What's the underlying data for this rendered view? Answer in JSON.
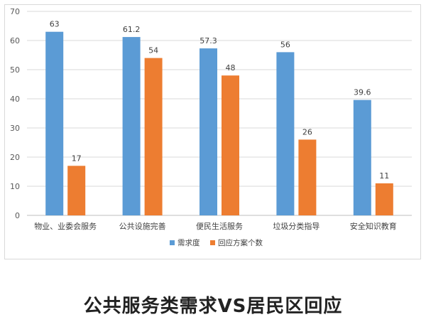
{
  "caption": "公共服务类需求VS居民区回应",
  "chart_data": {
    "type": "bar",
    "title": "",
    "xlabel": "",
    "ylabel": "",
    "ylim": [
      0,
      70
    ],
    "yticks": [
      0,
      10,
      20,
      30,
      40,
      50,
      60,
      70
    ],
    "grid": true,
    "legend_position": "bottom",
    "categories": [
      "物业、业委会服务",
      "公共设施完善",
      "便民生活服务",
      "垃圾分类指导",
      "安全知识教育"
    ],
    "series": [
      {
        "name": "需求度",
        "color": "#5b9bd5",
        "values": [
          63,
          61.2,
          57.3,
          56,
          39.6
        ],
        "labels": [
          "63",
          "61.2",
          "57.3",
          "56",
          "39.6"
        ]
      },
      {
        "name": "回应方案个数",
        "color": "#ed7d31",
        "values": [
          17,
          54,
          48,
          26,
          11
        ],
        "labels": [
          "17",
          "54",
          "48",
          "26",
          "11"
        ]
      }
    ]
  }
}
